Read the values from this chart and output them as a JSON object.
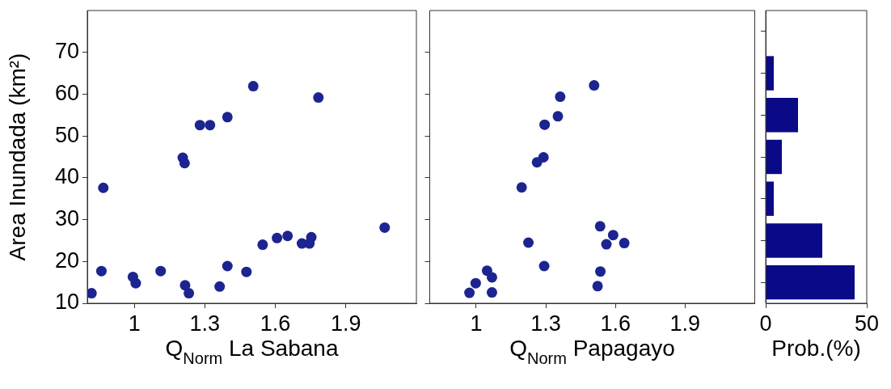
{
  "chart_data": [
    {
      "type": "scatter",
      "xlabel": "Q$_{Norm}$ La Sabana",
      "ylabel": "Area Inundada (km²)",
      "marker": "circle",
      "grid": false,
      "color": "#1c2490",
      "x": [
        0.818,
        0.86,
        0.868,
        0.994,
        1.006,
        1.112,
        1.206,
        1.214,
        1.216,
        1.232,
        1.279,
        1.322,
        1.363,
        1.396,
        1.396,
        1.477,
        1.506,
        1.546,
        1.607,
        1.652,
        1.713,
        1.745,
        1.753,
        1.783,
        2.065
      ],
      "values": [
        12.4,
        17.7,
        37.6,
        16.3,
        14.8,
        17.7,
        44.8,
        43.5,
        14.3,
        12.4,
        52.6,
        52.6,
        14.0,
        54.5,
        18.9,
        17.5,
        61.9,
        24.0,
        25.6,
        26.1,
        24.3,
        24.3,
        25.8,
        59.2,
        28.1
      ],
      "xlim": [
        0.8,
        2.2
      ],
      "xticks": [
        1,
        1.3,
        1.6,
        1.9
      ],
      "ylim": [
        10,
        80
      ],
      "yticks": [
        10,
        20,
        30,
        40,
        50,
        60,
        70
      ]
    },
    {
      "type": "scatter",
      "xlabel": "Q$_{Norm}$ Papagayo",
      "marker": "circle",
      "grid": false,
      "color": "#1c2490",
      "tick_labels": "x",
      "x": [
        1.508,
        1.362,
        1.352,
        1.295,
        1.29,
        1.262,
        1.196,
        1.534,
        1.59,
        1.561,
        1.638,
        1.225,
        1.293,
        1.535,
        1.523,
        1.047,
        1.068,
        0.998,
        0.971,
        1.068
      ],
      "values": [
        62.1,
        59.4,
        54.7,
        52.7,
        44.9,
        43.7,
        37.7,
        28.4,
        26.3,
        24.1,
        24.4,
        24.5,
        18.9,
        17.6,
        14.1,
        17.8,
        16.2,
        14.8,
        12.5,
        12.6
      ],
      "xlim": [
        0.8,
        2.2
      ],
      "xticks": [
        1,
        1.3,
        1.6,
        1.9
      ],
      "ylim": [
        10,
        80
      ],
      "yticks": [
        10,
        20,
        30,
        40,
        50,
        60,
        70
      ]
    },
    {
      "type": "histogram",
      "orientation": "horizontal",
      "xlabel": "Prob.(%)",
      "grid": false,
      "color": "#0a0a88",
      "tick_labels": "x",
      "bins": [
        10,
        20,
        30,
        40,
        50,
        60,
        70
      ],
      "values": [
        44,
        28,
        4,
        8,
        16,
        4
      ],
      "xlim": [
        0,
        50
      ],
      "xticks": [
        0,
        50
      ],
      "ylim": [
        10,
        80
      ],
      "yticks": [
        10,
        20,
        30,
        40,
        50,
        60,
        70
      ]
    }
  ]
}
